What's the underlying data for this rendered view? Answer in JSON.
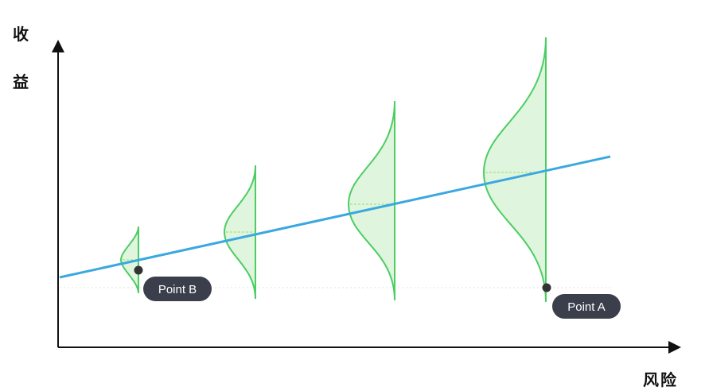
{
  "y_axis": {
    "label_chars": [
      "收",
      "益"
    ]
  },
  "x_axis": {
    "label": "风险"
  },
  "colors": {
    "trend_line": "#3aa8e0",
    "distribution_stroke": "#4ccd63",
    "distribution_fill": "#dff5dd",
    "point": "#333333",
    "callout_bg": "#3a3f4b",
    "axis": "#111111"
  },
  "distributions": [
    {
      "name": "small-risk",
      "spread": "narrow"
    },
    {
      "name": "low-risk",
      "spread": "medium"
    },
    {
      "name": "mid-risk",
      "spread": "wide"
    },
    {
      "name": "high-risk",
      "spread": "widest"
    }
  ],
  "points": [
    {
      "label": "Point B"
    },
    {
      "label": "Point A"
    }
  ]
}
